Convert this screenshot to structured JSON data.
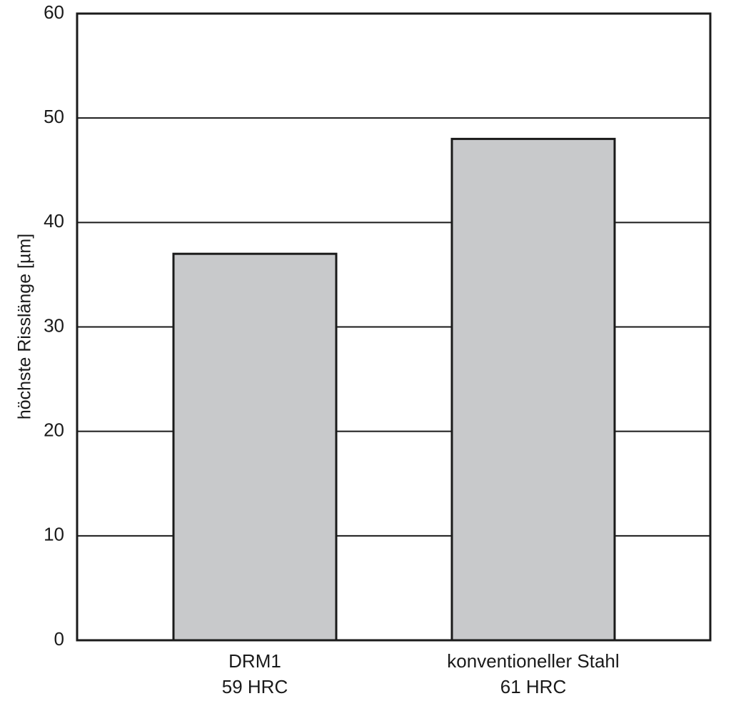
{
  "chart_data": {
    "type": "bar",
    "categories": [
      [
        "DRM1",
        "59 HRC"
      ],
      [
        "konventioneller Stahl",
        "61 HRC"
      ]
    ],
    "values": [
      37,
      48
    ],
    "title": "",
    "xlabel": "",
    "ylabel": "höchste Risslänge [µm]",
    "ylim": [
      0,
      60
    ],
    "yticks": [
      "0",
      "10",
      "20",
      "30",
      "40",
      "50",
      "60"
    ],
    "grid": true,
    "bar_color": "#c8c9cb",
    "bar_stroke": "#1a1a1a",
    "grid_color": "#1a1a1a"
  }
}
